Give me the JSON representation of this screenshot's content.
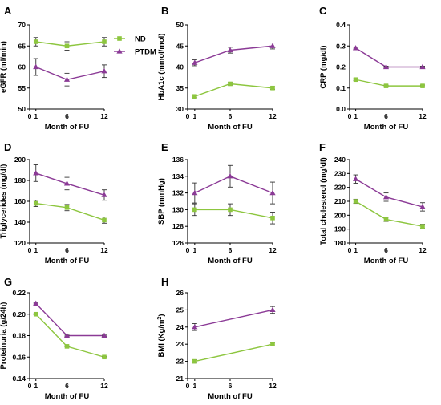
{
  "colors": {
    "ND": "#8dc63f",
    "PTDM": "#8b3a96",
    "axis": "#000000"
  },
  "legend": {
    "placement": "top-left of panel A, outside plot area",
    "items": [
      {
        "label": "ND",
        "marker": "square",
        "color": "#8dc63f"
      },
      {
        "label": "PTDM",
        "marker": "triangle",
        "color": "#8b3a96"
      }
    ]
  },
  "chart_data": [
    {
      "panel": "A",
      "type": "line",
      "ylabel": "eGFR (ml/min)",
      "xlabel": "Month of FU",
      "x": [
        1,
        6,
        12
      ],
      "xticks": [
        "0",
        "1",
        "6",
        "12"
      ],
      "xlim": [
        0,
        12
      ],
      "ylim": [
        50,
        70
      ],
      "yticks": [
        "50",
        "55",
        "60",
        "65",
        "70"
      ],
      "series": [
        {
          "name": "ND",
          "values": [
            66,
            65,
            66
          ],
          "errors": [
            1,
            1,
            1
          ]
        },
        {
          "name": "PTDM",
          "values": [
            60,
            57,
            59
          ],
          "errors": [
            2,
            1.5,
            1.5
          ]
        }
      ]
    },
    {
      "panel": "B",
      "type": "line",
      "ylabel": "HbA1c (mmol/mol)",
      "xlabel": "Month of FU",
      "x": [
        1,
        6,
        12
      ],
      "xticks": [
        "0",
        "1",
        "6",
        "12"
      ],
      "xlim": [
        0,
        12
      ],
      "ylim": [
        30,
        50
      ],
      "yticks": [
        "30",
        "35",
        "40",
        "45",
        "50"
      ],
      "series": [
        {
          "name": "ND",
          "values": [
            33,
            36,
            35
          ],
          "errors": [
            0.3,
            0.3,
            0.3
          ]
        },
        {
          "name": "PTDM",
          "values": [
            41,
            44,
            45
          ],
          "errors": [
            0.7,
            0.7,
            0.7
          ]
        }
      ]
    },
    {
      "panel": "C",
      "type": "line",
      "ylabel": "CRP (mg/dl)",
      "xlabel": "Month of FU",
      "x": [
        1,
        6,
        12
      ],
      "xticks": [
        "0",
        "1",
        "6",
        "12"
      ],
      "xlim": [
        0,
        12
      ],
      "ylim": [
        0.0,
        0.4
      ],
      "yticks": [
        "0.0",
        "0.1",
        "0.2",
        "0.3",
        "0.4"
      ],
      "series": [
        {
          "name": "ND",
          "values": [
            0.14,
            0.11,
            0.11
          ],
          "errors": [
            0.004,
            0.004,
            0.004
          ]
        },
        {
          "name": "PTDM",
          "values": [
            0.29,
            0.2,
            0.2
          ],
          "errors": [
            0.004,
            0.004,
            0.004
          ]
        }
      ]
    },
    {
      "panel": "D",
      "type": "line",
      "ylabel": "Triglycerides (mg/dl)",
      "xlabel": "Month of FU",
      "x": [
        1,
        6,
        12
      ],
      "xticks": [
        "0",
        "1",
        "6",
        "12"
      ],
      "xlim": [
        0,
        12
      ],
      "ylim": [
        120,
        200
      ],
      "yticks": [
        "120",
        "140",
        "160",
        "180",
        "200"
      ],
      "series": [
        {
          "name": "ND",
          "values": [
            158,
            154,
            142
          ],
          "errors": [
            3,
            3,
            3
          ]
        },
        {
          "name": "PTDM",
          "values": [
            187,
            177,
            166
          ],
          "errors": [
            8,
            6,
            5
          ]
        }
      ]
    },
    {
      "panel": "E",
      "type": "line",
      "ylabel": "SBP (mmHg)",
      "xlabel": "Month of FU",
      "x": [
        1,
        6,
        12
      ],
      "xticks": [
        "0",
        "1",
        "6",
        "12"
      ],
      "xlim": [
        0,
        12
      ],
      "ylim": [
        126,
        136
      ],
      "yticks": [
        "126",
        "128",
        "130",
        "132",
        "134",
        "136"
      ],
      "series": [
        {
          "name": "ND",
          "values": [
            130,
            130,
            129
          ],
          "errors": [
            0.7,
            0.7,
            0.7
          ]
        },
        {
          "name": "PTDM",
          "values": [
            132,
            134,
            132
          ],
          "errors": [
            1.2,
            1.3,
            1.3
          ]
        }
      ]
    },
    {
      "panel": "F",
      "type": "line",
      "ylabel": "Total cholesterol (mg/dl)",
      "xlabel": "Month of FU",
      "x": [
        1,
        6,
        12
      ],
      "xticks": [
        "0",
        "1",
        "6",
        "12"
      ],
      "xlim": [
        0,
        12
      ],
      "ylim": [
        180,
        240
      ],
      "yticks": [
        "180",
        "190",
        "200",
        "210",
        "220",
        "230",
        "240"
      ],
      "series": [
        {
          "name": "ND",
          "values": [
            210,
            197,
            192
          ],
          "errors": [
            1.5,
            1.5,
            1.5
          ]
        },
        {
          "name": "PTDM",
          "values": [
            226,
            213,
            206
          ],
          "errors": [
            3,
            3,
            3
          ]
        }
      ]
    },
    {
      "panel": "G",
      "type": "line",
      "ylabel": "Proteinuria (g/24h)",
      "xlabel": "Month of FU",
      "x": [
        1,
        6,
        12
      ],
      "xticks": [
        "0",
        "1",
        "6",
        "12"
      ],
      "xlim": [
        0,
        12
      ],
      "ylim": [
        0.14,
        0.22
      ],
      "yticks": [
        "0.14",
        "0.16",
        "0.18",
        "0.20",
        "0.22"
      ],
      "series": [
        {
          "name": "ND",
          "values": [
            0.2,
            0.17,
            0.16
          ],
          "errors": [
            0.0005,
            0.0005,
            0.0005
          ]
        },
        {
          "name": "PTDM",
          "values": [
            0.21,
            0.18,
            0.18
          ],
          "errors": [
            0.0005,
            0.0005,
            0.0005
          ]
        }
      ]
    },
    {
      "panel": "H",
      "type": "line",
      "ylabel": "BMI (Kg/m",
      "ylabel_sup": "2",
      "ylabel_end": ")",
      "xlabel": "Month of FU",
      "x": [
        1,
        12
      ],
      "xticks": [
        "0",
        "1",
        "6",
        "12"
      ],
      "xlim": [
        0,
        12
      ],
      "ylim": [
        21,
        26
      ],
      "yticks": [
        "21",
        "22",
        "23",
        "24",
        "25",
        "26"
      ],
      "series": [
        {
          "name": "ND",
          "values": [
            22,
            23
          ],
          "errors": [
            0.1,
            0.1
          ]
        },
        {
          "name": "PTDM",
          "values": [
            24,
            25
          ],
          "errors": [
            0.2,
            0.2
          ]
        }
      ]
    }
  ]
}
